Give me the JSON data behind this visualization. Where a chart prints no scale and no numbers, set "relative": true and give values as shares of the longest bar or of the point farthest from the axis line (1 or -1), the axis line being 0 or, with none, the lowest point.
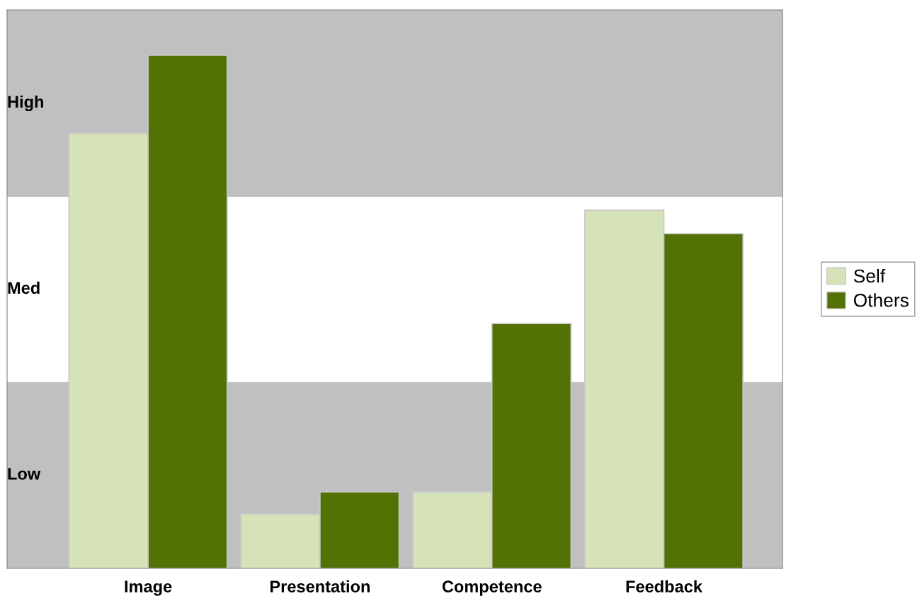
{
  "chart_data": {
    "type": "bar",
    "relative": true,
    "categories": [
      "Image",
      "Presentation",
      "Competence",
      "Feedback"
    ],
    "series": [
      {
        "name": "Self",
        "color": "#d6e2b8",
        "values": [
          0.848,
          0.106,
          0.149,
          0.698
        ]
      },
      {
        "name": "Others",
        "color": "#527206",
        "values": [
          1,
          0.149,
          0.477,
          0.652
        ]
      }
    ],
    "bands": [
      {
        "axis": "y",
        "from": 0,
        "to": 0.363,
        "label": "Low",
        "color": "#c0c0c0"
      },
      {
        "axis": "y",
        "from": 0.363,
        "to": 0.724,
        "label": "Med",
        "color": "#ffffff"
      },
      {
        "axis": "y",
        "from": 0.724,
        "to": 1.088,
        "label": "High",
        "color": "#c0c0c0"
      }
    ],
    "legend": "right",
    "grid": false
  }
}
